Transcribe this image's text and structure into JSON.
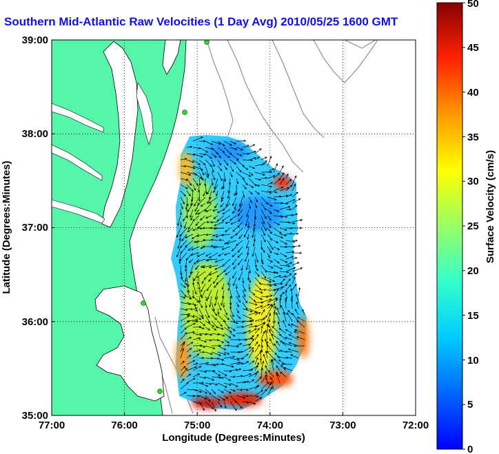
{
  "title": "Southern Mid-Atlantic Raw Velocities (1 Day Avg) 2010/05/25 1600 GMT",
  "map": {
    "xlabel": "Longitude (Degrees:Minutes)",
    "ylabel": "Latitude (Degrees:Minutes)",
    "x_ticks": [
      "77:00",
      "76:00",
      "75:00",
      "74:00",
      "73:00",
      "72:00"
    ],
    "y_ticks": [
      "39:00",
      "38:00",
      "37:00",
      "36:00",
      "35:00"
    ],
    "lon_range": [
      -77,
      -72
    ],
    "lat_range": [
      35,
      39
    ],
    "land_color": "#55f5aa",
    "coast_color": "#000000",
    "bathymetry_color": "#909090",
    "arrow_color": "#000000",
    "station_color": "#22dd22"
  },
  "colorbar": {
    "label": "Surface Velocity (cm/s)",
    "ticks": [
      "0",
      "5",
      "10",
      "15",
      "20",
      "25",
      "30",
      "35",
      "40",
      "45",
      "50"
    ],
    "range": [
      0,
      50
    ],
    "colormap": "jet"
  }
}
